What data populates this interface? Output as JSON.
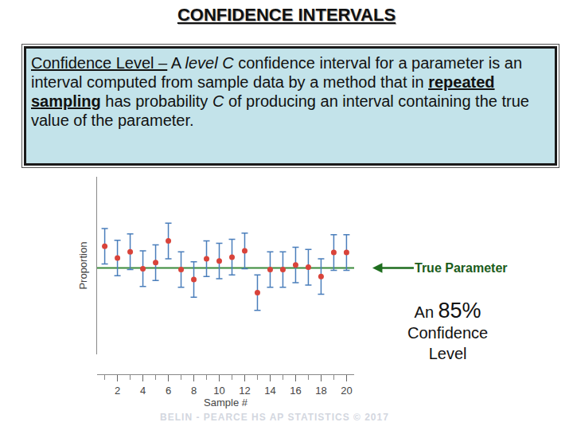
{
  "header": {
    "title": "CONFIDENCE INTERVALS"
  },
  "definition": [
    {
      "text": "Confidence Level –",
      "style": "underline"
    },
    {
      "text": " A "
    },
    {
      "text": "level C",
      "style": "italic"
    },
    {
      "text": " confidence interval for a parameter is an interval computed from sample data by a method that in "
    },
    {
      "text": "repeated sampling",
      "style": "bold-underline"
    },
    {
      "text": " has probability "
    },
    {
      "text": "C",
      "style": "italic"
    },
    {
      "text": " of producing an interval containing the true value of the parameter."
    }
  ],
  "chart_data": {
    "type": "scatter",
    "x": [
      1,
      2,
      3,
      4,
      5,
      6,
      7,
      8,
      9,
      10,
      11,
      12,
      13,
      14,
      15,
      16,
      17,
      18,
      19,
      20
    ],
    "values": [
      0.609,
      0.543,
      0.578,
      0.483,
      0.517,
      0.639,
      0.478,
      0.422,
      0.539,
      0.526,
      0.548,
      0.583,
      0.348,
      0.478,
      0.478,
      0.504,
      0.491,
      0.439,
      0.574,
      0.574
    ],
    "errors": [
      0.1,
      0.1,
      0.1,
      0.1,
      0.1,
      0.1,
      0.1,
      0.1,
      0.1,
      0.1,
      0.1,
      0.1,
      0.1,
      0.1,
      0.1,
      0.1,
      0.1,
      0.1,
      0.1,
      0.1
    ],
    "color": "#d9433a",
    "marker": "circle",
    "xlim": [
      0.4,
      20.6
    ],
    "xticks": [
      2,
      4,
      6,
      8,
      10,
      12,
      14,
      16,
      18,
      20
    ],
    "ylim": [
      0,
      1
    ],
    "yticks": [],
    "x_label": "Sample #",
    "y_label": "Proportion",
    "grid": false,
    "tick_labels": "x",
    "reference_line": {
      "value": 0.487,
      "label": "True Parameter",
      "color": "#3a8a3a"
    },
    "annotation": [
      "An",
      "85%",
      "Confidence",
      "Level"
    ]
  },
  "footer": "BELIN - PEARCE HS   AP STATISTICS © 2017"
}
